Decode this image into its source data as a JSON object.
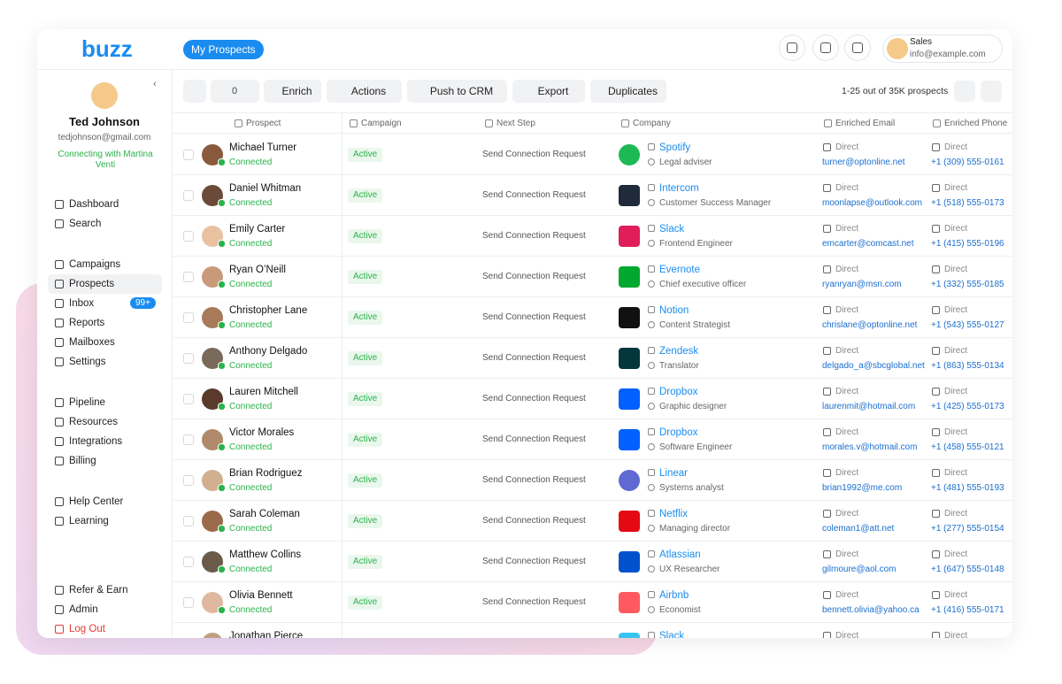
{
  "logo": "buzz",
  "header": {
    "tab": "My Prospects",
    "user_role": "Sales",
    "user_email": "info@example.com"
  },
  "profile": {
    "name": "Ted Johnson",
    "email": "tedjohnson@gmail.com",
    "status": "Connecting with Martina Venti"
  },
  "nav": [
    [
      {
        "label": "Dashboard"
      },
      {
        "label": "Search"
      }
    ],
    [
      {
        "label": "Campaigns"
      },
      {
        "label": "Prospects"
      },
      {
        "label": "Inbox",
        "badge": "99+"
      },
      {
        "label": "Reports"
      },
      {
        "label": "Mailboxes"
      },
      {
        "label": "Settings"
      }
    ],
    [
      {
        "label": "Pipeline"
      },
      {
        "label": "Resources"
      },
      {
        "label": "Integrations"
      },
      {
        "label": "Billing"
      }
    ],
    [
      {
        "label": "Help Center"
      },
      {
        "label": "Learning"
      }
    ],
    [
      {
        "label": "Refer & Earn"
      },
      {
        "label": "Admin"
      },
      {
        "label": "Log Out"
      }
    ]
  ],
  "toolbar": {
    "selected": "0",
    "buttons": [
      "Enrich",
      "Actions",
      "Push to CRM",
      "Export",
      "Duplicates"
    ],
    "pagination": "1-25 out of 35K prospects"
  },
  "table": {
    "columns": [
      "Prospect",
      "Campaign",
      "Next Step",
      "Company",
      "Enriched Email",
      "Enriched Phone"
    ],
    "rows": [
      {
        "name": "Michael Turner",
        "status": "Connected",
        "campaign": "Active",
        "next_step": "Send Connection Request",
        "company": "Spotify",
        "title": "Legal adviser",
        "email_type": "Direct",
        "email": "turner@optonline.net",
        "phone_type": "Direct",
        "phone": "+1 (309) 555-0161"
      },
      {
        "name": "Daniel Whitman",
        "status": "Connected",
        "campaign": "Active",
        "next_step": "Send Connection Request",
        "company": "Intercom",
        "title": "Customer Success Manager",
        "email_type": "Direct",
        "email": "moonlapse@outlook.com",
        "phone_type": "Direct",
        "phone": "+1 (518) 555-0173"
      },
      {
        "name": "Emily Carter",
        "status": "Connected",
        "campaign": "Active",
        "next_step": "Send Connection Request",
        "company": "Slack",
        "title": "Frontend Engineer",
        "email_type": "Direct",
        "email": "emcarter@comcast.net",
        "phone_type": "Direct",
        "phone": "+1 (415) 555-0196"
      },
      {
        "name": "Ryan O’Neill",
        "status": "Connected",
        "campaign": "Active",
        "next_step": "Send Connection Request",
        "company": "Evernote",
        "title": "Chief executive officer",
        "email_type": "Direct",
        "email": "ryanryan@msn.com",
        "phone_type": "Direct",
        "phone": "+1 (332) 555-0185"
      },
      {
        "name": "Christopher Lane",
        "status": "Connected",
        "campaign": "Active",
        "next_step": "Send Connection Request",
        "company": "Notion",
        "title": "Content Strategist",
        "email_type": "Direct",
        "email": "chrislane@optonline.net",
        "phone_type": "Direct",
        "phone": "+1 (543) 555-0127"
      },
      {
        "name": "Anthony Delgado",
        "status": "Connected",
        "campaign": "Active",
        "next_step": "Send Connection Request",
        "company": "Zendesk",
        "title": "Translator",
        "email_type": "Direct",
        "email": "delgado_a@sbcglobal.net",
        "phone_type": "Direct",
        "phone": "+1 (863) 555-0134"
      },
      {
        "name": "Lauren Mitchell",
        "status": "Connected",
        "campaign": "Active",
        "next_step": "Send Connection Request",
        "company": "Dropbox",
        "title": "Graphic designer",
        "email_type": "Direct",
        "email": "laurenmit@hotmail.com",
        "phone_type": "Direct",
        "phone": "+1 (425) 555-0173"
      },
      {
        "name": "Victor Morales",
        "status": "Connected",
        "campaign": "Active",
        "next_step": "Send Connection Request",
        "company": "Dropbox",
        "title": "Software Engineer",
        "email_type": "Direct",
        "email": "morales.v@hotmail.com",
        "phone_type": "Direct",
        "phone": "+1 (458) 555-0121"
      },
      {
        "name": "Brian Rodriguez",
        "status": "Connected",
        "campaign": "Active",
        "next_step": "Send Connection Request",
        "company": "Linear",
        "title": "Systems analyst",
        "email_type": "Direct",
        "email": "brian1992@me.com",
        "phone_type": "Direct",
        "phone": "+1 (481) 555-0193"
      },
      {
        "name": "Sarah Coleman",
        "status": "Connected",
        "campaign": "Active",
        "next_step": "Send Connection Request",
        "company": "Netflix",
        "title": "Managing director",
        "email_type": "Direct",
        "email": "coleman1@att.net",
        "phone_type": "Direct",
        "phone": "+1 (277) 555-0154"
      },
      {
        "name": "Matthew Collins",
        "status": "Connected",
        "campaign": "Active",
        "next_step": "Send Connection Request",
        "company": "Atlassian",
        "title": "UX Researcher",
        "email_type": "Direct",
        "email": "gilmoure@aol.com",
        "phone_type": "Direct",
        "phone": "+1 (647) 555-0148"
      },
      {
        "name": "Olivia Bennett",
        "status": "Connected",
        "campaign": "Active",
        "next_step": "Send Connection Request",
        "company": "Airbnb",
        "title": "Economist",
        "email_type": "Direct",
        "email": "bennett.olivia@yahoo.ca",
        "phone_type": "Direct",
        "phone": "+1 (416) 555-0171"
      },
      {
        "name": "Jonathan Pierce",
        "company": "Slack",
        "email_type": "Direct",
        "phone_type": "Direct"
      }
    ]
  }
}
